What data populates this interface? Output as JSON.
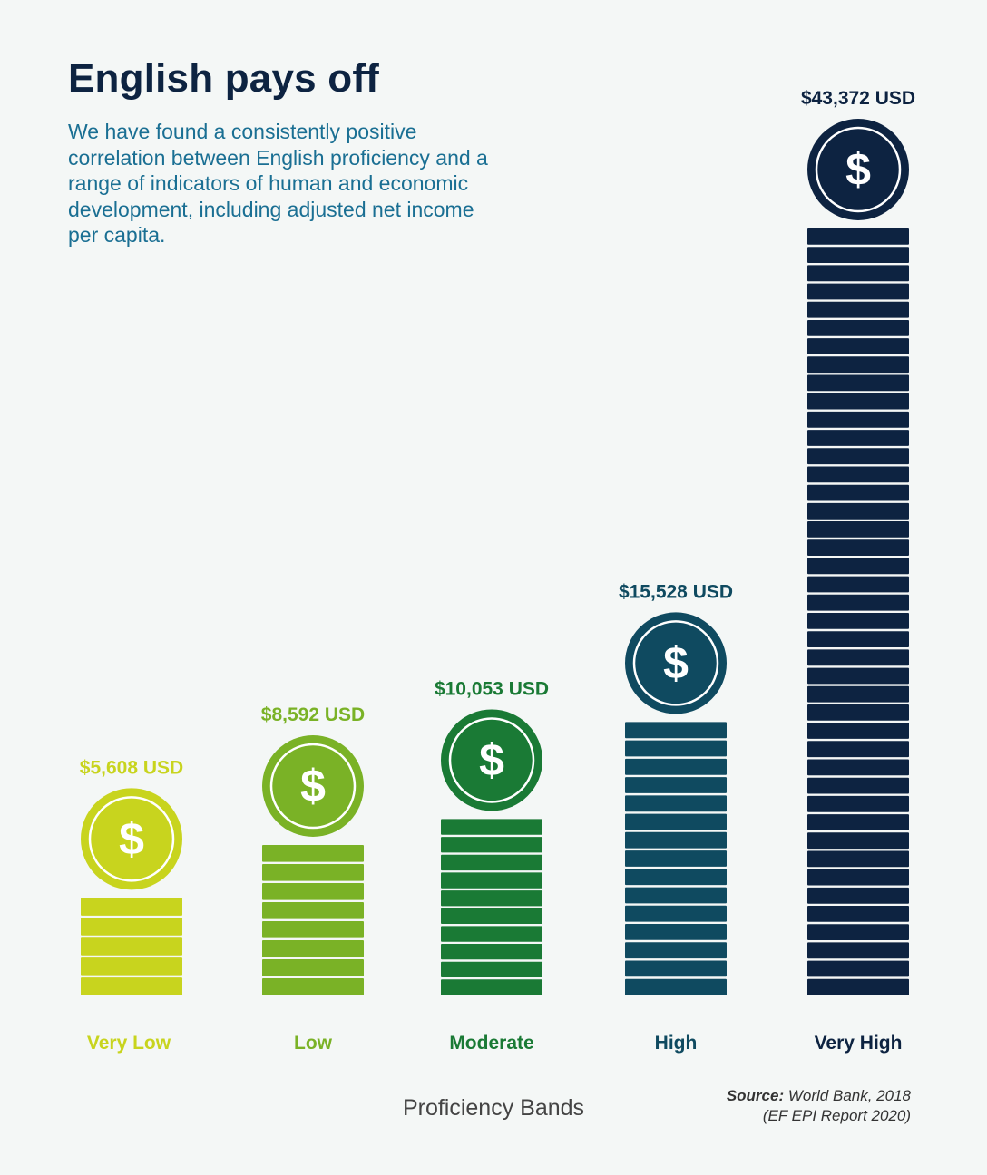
{
  "header": {
    "title": "English pays off",
    "subtitle": "We have found a consistently positive correlation between English proficiency and a range of indicators of human and economic development, including adjusted net income per capita."
  },
  "footer": {
    "source_label": "Source:",
    "source_text": "World Bank, 2018",
    "source_note": "(EF EPI Report 2020)"
  },
  "chart_data": {
    "type": "bar",
    "title": "English pays off",
    "xlabel": "Proficiency Bands",
    "ylabel": "",
    "categories": [
      "Very Low",
      "Low",
      "Moderate",
      "High",
      "Very High"
    ],
    "values": [
      5608,
      8592,
      10053,
      15528,
      43372
    ],
    "value_labels": [
      "$5,608 USD",
      "$8,592 USD",
      "$10,053 USD",
      "$15,528 USD",
      "$43,372 USD"
    ],
    "colors": [
      "#c8d41e",
      "#7ab226",
      "#1a7a35",
      "#0f4a60",
      "#0d2341"
    ],
    "coin_symbol": "$",
    "grid": false,
    "legend": "none"
  }
}
